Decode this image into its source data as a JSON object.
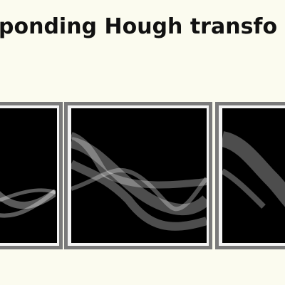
{
  "header": {
    "title": "ponding Hough transfo"
  }
}
